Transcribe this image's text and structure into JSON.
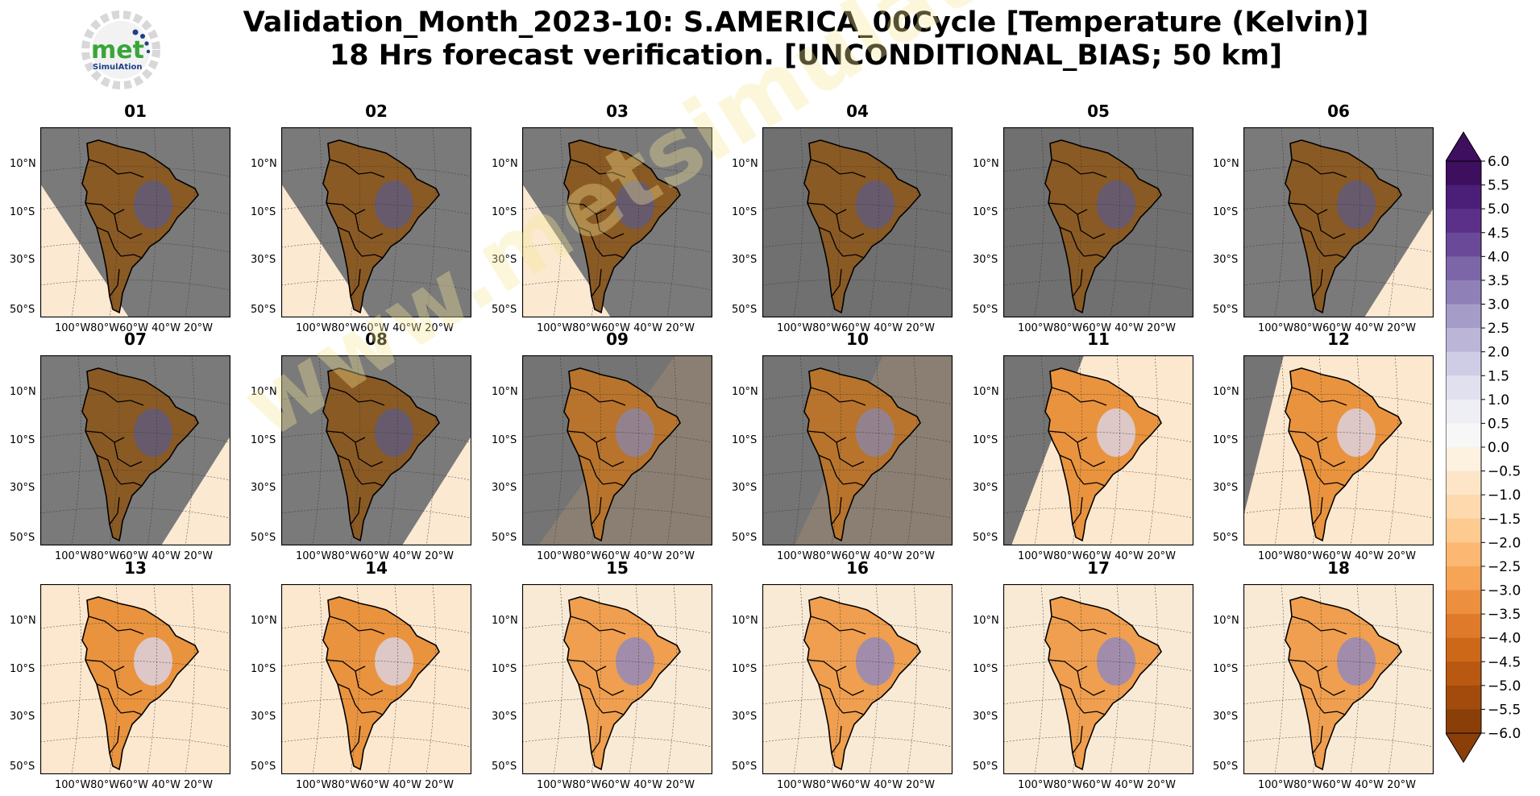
{
  "title": {
    "line1": "Validation_Month_2023-10: S.AMERICA_00Cycle [Temperature (Kelvin)]",
    "line2": "18 Hrs forecast verification. [UNCONDITIONAL_BIAS; 50 km]"
  },
  "logo": {
    "text": "met",
    "subtext": "SimulAtion"
  },
  "watermark": "www.metsimulation.com",
  "lat_labels": [
    "10°N",
    "10°S",
    "30°S",
    "50°S"
  ],
  "lon_labels": "100°W80°W60°W 40°W 20°W",
  "panels": [
    {
      "label": "01",
      "tone": "dark",
      "nodata": "lower-left"
    },
    {
      "label": "02",
      "tone": "dark",
      "nodata": "lower-left"
    },
    {
      "label": "03",
      "tone": "dark",
      "nodata": "lower-left"
    },
    {
      "label": "04",
      "tone": "dark",
      "nodata": "full"
    },
    {
      "label": "05",
      "tone": "dark",
      "nodata": "full"
    },
    {
      "label": "06",
      "tone": "dark",
      "nodata": "lower-right"
    },
    {
      "label": "07",
      "tone": "dark",
      "nodata": "lower-right"
    },
    {
      "label": "08",
      "tone": "dark",
      "nodata": "lower-right"
    },
    {
      "label": "09",
      "tone": "mixed",
      "nodata": "left-half"
    },
    {
      "label": "10",
      "tone": "mixed",
      "nodata": "left-third"
    },
    {
      "label": "11",
      "tone": "warm",
      "nodata": "left-sliver"
    },
    {
      "label": "12",
      "tone": "warm",
      "nodata": "left-edge"
    },
    {
      "label": "13",
      "tone": "warm",
      "nodata": "none"
    },
    {
      "label": "14",
      "tone": "warm",
      "nodata": "none"
    },
    {
      "label": "15",
      "tone": "cool",
      "nodata": "none"
    },
    {
      "label": "16",
      "tone": "cool",
      "nodata": "none"
    },
    {
      "label": "17",
      "tone": "cool",
      "nodata": "none"
    },
    {
      "label": "18",
      "tone": "cool",
      "nodata": "none"
    }
  ],
  "colorbar": {
    "ticks": [
      "6.0",
      "5.5",
      "5.0",
      "4.5",
      "4.0",
      "3.5",
      "3.0",
      "2.5",
      "2.0",
      "1.5",
      "1.0",
      "0.5",
      "0.0",
      "−0.5",
      "−1.0",
      "−1.5",
      "−2.0",
      "−2.5",
      "−3.0",
      "−3.5",
      "−4.0",
      "−4.5",
      "−5.0",
      "−5.5",
      "−6.0"
    ],
    "colors": [
      "#3f0f5f",
      "#4b1f77",
      "#5a3088",
      "#6a4a98",
      "#7c66a8",
      "#8f80b8",
      "#a59cc8",
      "#bbb6d8",
      "#cfcde6",
      "#e0e0ef",
      "#eeeef5",
      "#f7f7f7",
      "#fdf1e0",
      "#fde6c8",
      "#fdd9ad",
      "#fdca90",
      "#fcb873",
      "#f6a456",
      "#ec8f3e",
      "#de7a2a",
      "#cd6819",
      "#b95810",
      "#a34b0c",
      "#8b3f08"
    ]
  }
}
